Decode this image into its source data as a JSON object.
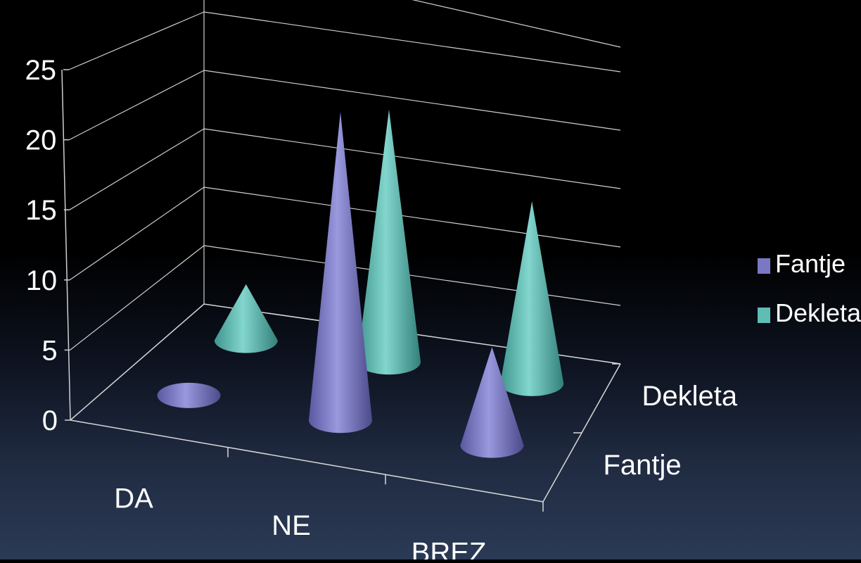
{
  "chart_data": {
    "type": "bar",
    "style": "3d-cone",
    "categories": [
      "DA",
      "NE",
      "BREZ"
    ],
    "depth_categories": [
      "Fantje",
      "Dekleta"
    ],
    "series": [
      {
        "name": "Fantje",
        "values": [
          0,
          22,
          7
        ],
        "color": "#7a78c4"
      },
      {
        "name": "Dekleta",
        "values": [
          4,
          18,
          13
        ],
        "color": "#5fbdb4"
      }
    ],
    "ylim": [
      0,
      25
    ],
    "yticks": [
      "0",
      "5",
      "10",
      "15",
      "20",
      "25"
    ],
    "grid": true,
    "legend": "right"
  }
}
